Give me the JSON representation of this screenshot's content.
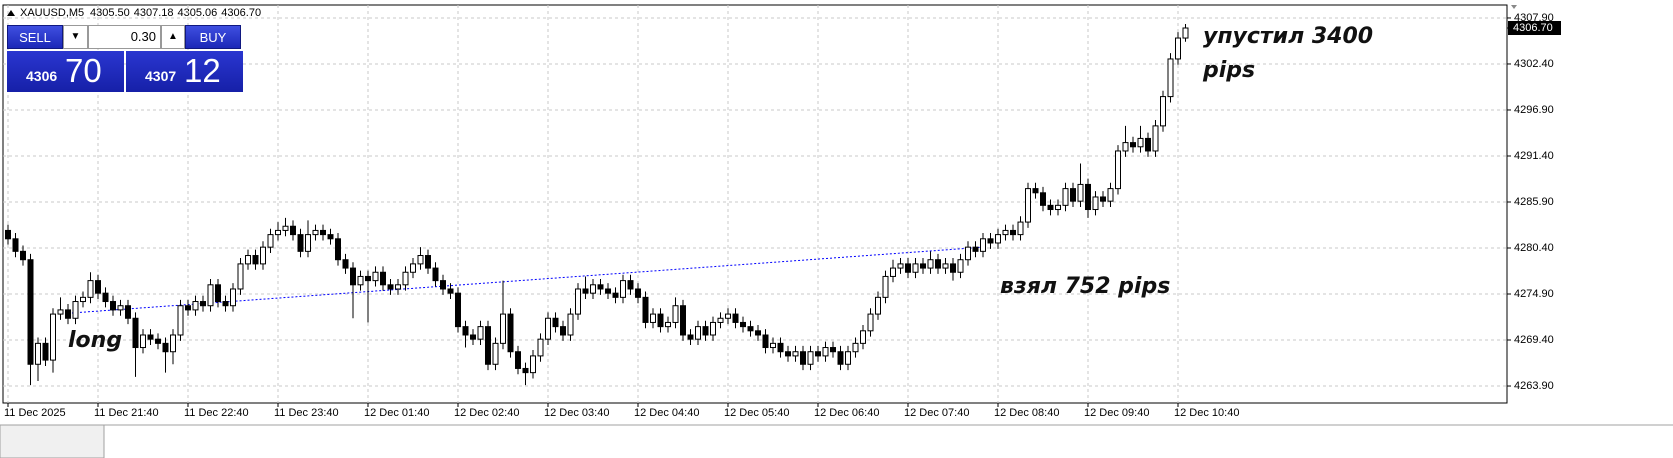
{
  "chart_data": {
    "type": "candlestick",
    "symbol": "XAUUSD,M5",
    "header_ohlc": [
      "4305.50",
      "4307.18",
      "4305.06",
      "4306.70"
    ],
    "color": "#000000",
    "up_fill": "#ffffff",
    "grid": true,
    "categories": [
      "11 Dec 2025",
      null,
      null,
      null,
      null,
      null,
      null,
      null,
      null,
      null,
      null,
      null,
      "11 Dec 21:40",
      null,
      null,
      null,
      null,
      null,
      null,
      null,
      null,
      null,
      null,
      null,
      "11 Dec 22:40",
      null,
      null,
      null,
      null,
      null,
      null,
      null,
      null,
      null,
      null,
      null,
      "11 Dec 23:40",
      null,
      null,
      null,
      null,
      null,
      null,
      null,
      null,
      null,
      null,
      null,
      "12 Dec 01:40",
      null,
      null,
      null,
      null,
      null,
      null,
      null,
      null,
      null,
      null,
      null,
      "12 Dec 02:40",
      null,
      null,
      null,
      null,
      null,
      null,
      null,
      null,
      null,
      null,
      null,
      "12 Dec 03:40",
      null,
      null,
      null,
      null,
      null,
      null,
      null,
      null,
      null,
      null,
      null,
      "12 Dec 04:40",
      null,
      null,
      null,
      null,
      null,
      null,
      null,
      null,
      null,
      null,
      null,
      "12 Dec 05:40",
      null,
      null,
      null,
      null,
      null,
      null,
      null,
      null,
      null,
      null,
      null,
      "12 Dec 06:40",
      null,
      null,
      null,
      null,
      null,
      null,
      null,
      null,
      null,
      null,
      null,
      "12 Dec 07:40",
      null,
      null,
      null,
      null,
      null,
      null,
      null,
      null,
      null,
      null,
      null,
      "12 Dec 08:40",
      null,
      null,
      null,
      null,
      null,
      null,
      null,
      null,
      null,
      null,
      null,
      "12 Dec 09:40",
      null,
      null,
      null,
      null,
      null,
      null,
      null,
      null,
      null,
      null,
      null,
      "12 Dec 10:40",
      null
    ],
    "open": [
      4282.5,
      4281.5,
      4280.0,
      4279.0,
      4266.5,
      4269.0,
      4267.0,
      4272.5,
      4273.0,
      4272.0,
      4274.0,
      4274.5,
      4276.5,
      4275.0,
      4274.0,
      4273.0,
      4273.5,
      4272.0,
      4268.5,
      4270.0,
      4269.5,
      4269.0,
      4268.0,
      4270.0,
      4273.5,
      4273.0,
      4274.0,
      4273.5,
      4276.0,
      4274.0,
      4273.5,
      4275.5,
      4278.5,
      4279.5,
      4278.5,
      4280.5,
      4282.0,
      4282.5,
      4283.0,
      4282.0,
      4280.0,
      4282.0,
      4282.5,
      4282.0,
      4281.5,
      4279.0,
      4278.0,
      4276.0,
      4277.0,
      4276.5,
      4277.5,
      4276.0,
      4275.5,
      4276.0,
      4277.5,
      4278.5,
      4279.5,
      4278.0,
      4276.5,
      4275.5,
      4275.0,
      4271.0,
      4270.0,
      4269.5,
      4271.0,
      4266.5,
      4269.0,
      4272.5,
      4268.0,
      4266.0,
      4265.5,
      4267.5,
      4269.5,
      4272.0,
      4271.0,
      4270.0,
      4272.5,
      4275.5,
      4275.0,
      4276.0,
      4275.5,
      4275.0,
      4274.5,
      4276.5,
      4275.5,
      4274.5,
      4271.5,
      4272.5,
      4271.0,
      4271.5,
      4273.5,
      4270.0,
      4269.5,
      4271.0,
      4270.0,
      4271.5,
      4272.0,
      4272.5,
      4271.5,
      4271.0,
      4270.5,
      4270.0,
      4268.5,
      4269.0,
      4268.0,
      4267.5,
      4268.0,
      4266.5,
      4268.0,
      4267.5,
      4268.5,
      4268.0,
      4266.5,
      4268.0,
      4269.0,
      4270.5,
      4272.5,
      4274.5,
      4277.0,
      4278.0,
      4278.5,
      4277.5,
      4278.5,
      4278.0,
      4279.0,
      4278.0,
      4278.5,
      4277.5,
      4279.0,
      4280.5,
      4280.0,
      4281.5,
      4281.0,
      4282.0,
      4282.5,
      4282.0,
      4283.5,
      4287.5,
      4287.0,
      4285.5,
      4285.0,
      4285.5,
      4287.5,
      4286.0,
      4288.0,
      4285.0,
      4286.5,
      4286.0,
      4287.5,
      4292.0,
      4293.0,
      4292.5,
      4293.5,
      4292.0,
      4295.0,
      4298.5,
      4303.0,
      4305.5
    ],
    "high": [
      4283.2,
      4282.2,
      4280.7,
      4279.7,
      4269.7,
      4269.7,
      4273.2,
      4274.5,
      4273.7,
      4274.7,
      4275.2,
      4277.5,
      4277.2,
      4275.7,
      4274.7,
      4274.2,
      4274.2,
      4272.7,
      4270.7,
      4270.7,
      4270.2,
      4269.7,
      4270.7,
      4274.2,
      4274.2,
      4274.7,
      4274.7,
      4276.7,
      4276.7,
      4274.7,
      4276.2,
      4279.2,
      4280.2,
      4280.2,
      4281.2,
      4282.7,
      4283.5,
      4284.0,
      4283.7,
      4282.7,
      4283.7,
      4283.2,
      4283.2,
      4282.7,
      4282.2,
      4279.7,
      4278.7,
      4277.7,
      4277.7,
      4278.2,
      4278.2,
      4276.7,
      4276.7,
      4278.2,
      4279.2,
      4280.5,
      4280.2,
      4278.7,
      4277.2,
      4276.2,
      4275.7,
      4271.7,
      4270.7,
      4271.7,
      4271.7,
      4269.7,
      4276.5,
      4273.2,
      4268.7,
      4266.7,
      4268.2,
      4270.2,
      4272.7,
      4272.7,
      4271.7,
      4273.2,
      4276.2,
      4277.0,
      4276.7,
      4276.7,
      4276.2,
      4275.7,
      4277.2,
      4277.2,
      4276.2,
      4275.2,
      4273.2,
      4273.2,
      4272.2,
      4274.5,
      4274.2,
      4270.7,
      4271.7,
      4271.7,
      4272.2,
      4272.7,
      4273.2,
      4273.2,
      4272.2,
      4271.7,
      4271.2,
      4270.7,
      4269.7,
      4269.7,
      4268.7,
      4268.7,
      4268.7,
      4268.7,
      4268.7,
      4269.2,
      4269.2,
      4268.7,
      4268.7,
      4269.7,
      4271.2,
      4273.2,
      4275.2,
      4277.7,
      4279.0,
      4279.2,
      4279.2,
      4279.2,
      4279.2,
      4280.0,
      4279.7,
      4279.2,
      4279.2,
      4279.7,
      4281.2,
      4281.2,
      4282.2,
      4282.2,
      4282.7,
      4283.2,
      4283.2,
      4284.2,
      4288.2,
      4288.2,
      4287.7,
      4286.2,
      4286.2,
      4288.2,
      4288.2,
      4290.5,
      4288.7,
      4287.2,
      4287.2,
      4288.2,
      4292.7,
      4295.0,
      4293.7,
      4295.0,
      4294.2,
      4295.7,
      4299.2,
      4303.7,
      4306.2,
      4307.18
    ],
    "low": [
      4280.8,
      4279.3,
      4278.3,
      4264.0,
      4264.5,
      4266.3,
      4265.5,
      4271.8,
      4271.3,
      4271.3,
      4273.3,
      4273.8,
      4274.3,
      4273.3,
      4272.3,
      4272.3,
      4271.3,
      4265.0,
      4267.8,
      4268.8,
      4268.3,
      4265.5,
      4266.5,
      4269.3,
      4272.3,
      4272.3,
      4272.8,
      4272.8,
      4273.3,
      4272.8,
      4272.8,
      4274.8,
      4277.8,
      4277.8,
      4277.8,
      4279.8,
      4281.3,
      4281.8,
      4281.3,
      4279.3,
      4279.3,
      4281.3,
      4281.3,
      4280.8,
      4278.3,
      4277.3,
      4272.0,
      4275.3,
      4271.5,
      4275.8,
      4275.3,
      4274.8,
      4274.8,
      4275.3,
      4276.8,
      4277.8,
      4277.3,
      4275.8,
      4274.8,
      4274.3,
      4270.3,
      4268.5,
      4268.8,
      4268.8,
      4265.8,
      4265.8,
      4268.3,
      4267.3,
      4265.3,
      4264.0,
      4264.8,
      4266.8,
      4268.8,
      4270.3,
      4269.3,
      4269.3,
      4271.8,
      4274.3,
      4274.3,
      4274.8,
      4274.3,
      4273.8,
      4273.8,
      4274.8,
      4273.8,
      4270.8,
      4270.8,
      4270.3,
      4270.3,
      4270.8,
      4269.3,
      4268.8,
      4268.8,
      4269.3,
      4269.3,
      4270.8,
      4271.3,
      4270.8,
      4270.3,
      4269.8,
      4269.3,
      4267.8,
      4267.8,
      4267.3,
      4266.8,
      4266.8,
      4265.8,
      4265.8,
      4266.8,
      4266.8,
      4267.3,
      4265.8,
      4265.8,
      4267.3,
      4268.3,
      4269.8,
      4271.8,
      4273.8,
      4276.3,
      4277.3,
      4276.8,
      4276.8,
      4277.3,
      4277.3,
      4277.3,
      4277.3,
      4276.5,
      4276.8,
      4278.3,
      4279.3,
      4279.3,
      4280.3,
      4280.3,
      4281.3,
      4281.3,
      4281.3,
      4282.8,
      4286.3,
      4284.8,
      4284.3,
      4284.3,
      4284.8,
      4285.3,
      4285.3,
      4284.0,
      4284.3,
      4285.3,
      4285.3,
      4286.8,
      4291.3,
      4291.8,
      4291.8,
      4291.3,
      4291.3,
      4294.3,
      4297.8,
      4302.3,
      4305.06
    ],
    "close": [
      4281.5,
      4280.0,
      4279.0,
      4266.5,
      4269.0,
      4267.0,
      4272.5,
      4273.0,
      4272.0,
      4274.0,
      4274.5,
      4276.5,
      4275.0,
      4274.0,
      4273.0,
      4273.5,
      4272.0,
      4268.5,
      4270.0,
      4269.5,
      4269.0,
      4268.0,
      4270.0,
      4273.5,
      4273.0,
      4274.0,
      4273.5,
      4276.0,
      4274.0,
      4273.5,
      4275.5,
      4278.5,
      4279.5,
      4278.5,
      4280.5,
      4282.0,
      4282.5,
      4283.0,
      4282.0,
      4280.0,
      4282.0,
      4282.5,
      4282.0,
      4281.5,
      4279.0,
      4278.0,
      4276.0,
      4277.0,
      4276.5,
      4277.5,
      4276.0,
      4275.5,
      4276.0,
      4277.5,
      4278.5,
      4279.5,
      4278.0,
      4276.5,
      4275.5,
      4275.0,
      4271.0,
      4270.0,
      4269.5,
      4271.0,
      4266.5,
      4269.0,
      4272.5,
      4268.0,
      4266.0,
      4265.5,
      4267.5,
      4269.5,
      4272.0,
      4271.0,
      4270.0,
      4272.5,
      4275.5,
      4275.0,
      4276.0,
      4275.5,
      4275.0,
      4274.5,
      4276.5,
      4275.5,
      4274.5,
      4271.5,
      4272.5,
      4271.0,
      4271.5,
      4273.5,
      4270.0,
      4269.5,
      4271.0,
      4270.0,
      4271.5,
      4272.0,
      4272.5,
      4271.5,
      4271.0,
      4270.5,
      4270.0,
      4268.5,
      4269.0,
      4268.0,
      4267.5,
      4268.0,
      4266.5,
      4268.0,
      4267.5,
      4268.5,
      4268.0,
      4266.5,
      4268.0,
      4269.0,
      4270.5,
      4272.5,
      4274.5,
      4277.0,
      4278.0,
      4278.5,
      4277.5,
      4278.5,
      4278.0,
      4279.0,
      4278.0,
      4278.5,
      4277.5,
      4279.0,
      4280.5,
      4280.0,
      4281.5,
      4281.0,
      4282.0,
      4282.5,
      4282.0,
      4283.5,
      4287.5,
      4287.0,
      4285.5,
      4285.0,
      4285.5,
      4287.5,
      4286.0,
      4288.0,
      4285.0,
      4286.5,
      4286.0,
      4287.5,
      4292.0,
      4293.0,
      4292.5,
      4293.5,
      4292.0,
      4295.0,
      4298.5,
      4303.0,
      4305.5,
      4306.7
    ],
    "ylim": [
      4261.87,
      4309.45
    ],
    "yticks": [
      {
        "value": 4307.9,
        "label": "4307.90"
      },
      {
        "value": 4302.4,
        "label": "4302.40"
      },
      {
        "value": 4296.9,
        "label": "4296.90"
      },
      {
        "value": 4291.4,
        "label": "4291.40"
      },
      {
        "value": 4285.9,
        "label": "4285.90"
      },
      {
        "value": 4280.4,
        "label": "4280.40"
      },
      {
        "value": 4274.9,
        "label": "4274.90"
      },
      {
        "value": 4269.4,
        "label": "4269.40"
      },
      {
        "value": 4263.9,
        "label": "4263.90"
      }
    ],
    "current_price": {
      "value": 4306.7,
      "label": "4306.70"
    },
    "trendline": {
      "color": "#0000ff",
      "from": {
        "index": 8,
        "price": 4272.6
      },
      "to": {
        "index": 130,
        "price": 4280.5
      }
    },
    "annotations": [
      "упустил 3400 pips",
      "взял 752 pips",
      "long"
    ]
  },
  "trade_panel": {
    "sell": "SELL",
    "buy": "BUY",
    "lot": "0.30",
    "bid_big": "4306",
    "bid_small": "70",
    "ask_big": "4307",
    "ask_small": "12"
  }
}
